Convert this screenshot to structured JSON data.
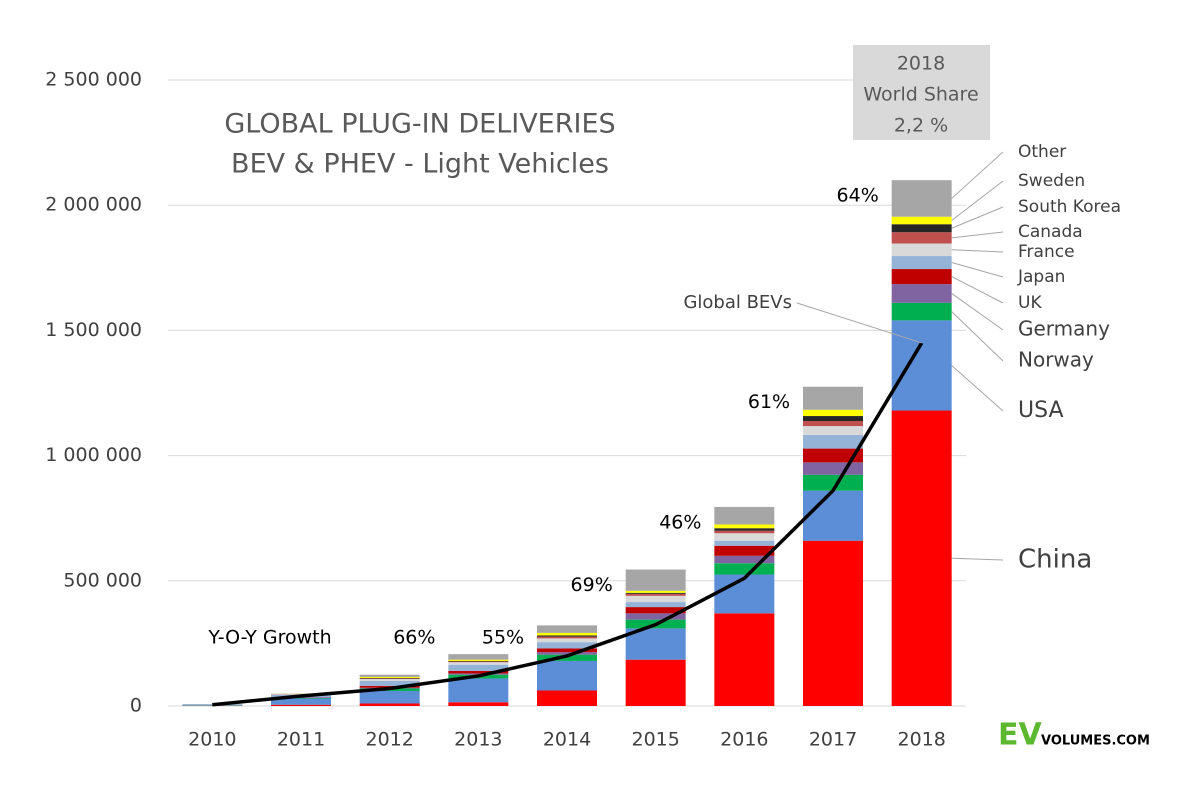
{
  "chart_data": {
    "type": "stacked-bar-line",
    "title": [
      "GLOBAL PLUG-IN DELIVERIES",
      "BEV & PHEV - Light Vehicles"
    ],
    "share_box": [
      "2018",
      "World Share",
      "2,2 %"
    ],
    "annotation": "Y-O-Y Growth",
    "source": [
      "EV",
      "VOLUMES.COM"
    ],
    "categories": [
      "2010",
      "2011",
      "2012",
      "2013",
      "2014",
      "2015",
      "2016",
      "2017",
      "2018"
    ],
    "growth_labels": [
      null,
      null,
      null,
      "66%",
      "55%",
      "69%",
      "46%",
      "61%",
      "64%"
    ],
    "series": [
      {
        "name": "China",
        "color": "#ff0000",
        "values": [
          1000,
          5000,
          10000,
          15000,
          62000,
          185000,
          370000,
          660000,
          1180000
        ]
      },
      {
        "name": "USA",
        "color": "#5b8ed6",
        "values": [
          2000,
          25000,
          50000,
          95000,
          118000,
          125000,
          155000,
          200000,
          360000
        ]
      },
      {
        "name": "Norway",
        "color": "#00b050",
        "values": [
          1000,
          2000,
          10000,
          15000,
          25000,
          35000,
          45000,
          63000,
          70000
        ]
      },
      {
        "name": "Germany",
        "color": "#8064a2",
        "values": [
          0,
          2000,
          3000,
          5000,
          10000,
          25000,
          30000,
          50000,
          75000
        ]
      },
      {
        "name": "UK",
        "color": "#c00000",
        "values": [
          0,
          1000,
          7000,
          10000,
          15000,
          25000,
          40000,
          55000,
          60000
        ]
      },
      {
        "name": "Japan",
        "color": "#95b3d7",
        "values": [
          3000,
          10000,
          20000,
          25000,
          25000,
          20000,
          20000,
          55000,
          52000
        ]
      },
      {
        "name": "France",
        "color": "#d9d9d9",
        "values": [
          0,
          2000,
          8000,
          10000,
          15000,
          25000,
          30000,
          35000,
          50000
        ]
      },
      {
        "name": "Canada",
        "color": "#c0504d",
        "values": [
          0,
          1000,
          2000,
          3000,
          7000,
          8000,
          10000,
          20000,
          45000
        ]
      },
      {
        "name": "South Korea",
        "color": "#262626",
        "values": [
          0,
          0,
          2000,
          2000,
          5000,
          4000,
          10000,
          20000,
          32000
        ]
      },
      {
        "name": "Sweden",
        "color": "#ffff00",
        "values": [
          0,
          1000,
          4000,
          5000,
          10000,
          8000,
          15000,
          25000,
          30000
        ]
      },
      {
        "name": "Other",
        "color": "#a6a6a6",
        "values": [
          1000,
          1000,
          9000,
          22000,
          30000,
          85000,
          70000,
          92000,
          146000
        ]
      }
    ],
    "line": {
      "name": "Global BEVs",
      "color": "#000000",
      "values": [
        5000,
        40000,
        70000,
        120000,
        200000,
        325000,
        510000,
        860000,
        1450000
      ]
    },
    "ylim": [
      0,
      2500000
    ],
    "yticks": [
      0,
      {
        "value": 500000,
        "label": "500 000"
      },
      {
        "value": 1000000,
        "label": "1 000 000"
      },
      {
        "value": 1500000,
        "label": "1 500 000"
      },
      {
        "value": 2000000,
        "label": "2 000 000"
      },
      {
        "value": 2500000,
        "label": "2 500 000"
      }
    ],
    "grid": true
  }
}
